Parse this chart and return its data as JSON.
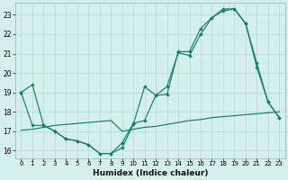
{
  "xlabel": "Humidex (Indice chaleur)",
  "bg_color": "#d5f0ec",
  "grid_color": "#b8ddd8",
  "line_color": "#1a7a6e",
  "xlim": [
    -0.5,
    23.5
  ],
  "ylim": [
    15.6,
    23.6
  ],
  "xticks": [
    0,
    1,
    2,
    3,
    4,
    5,
    6,
    7,
    8,
    9,
    10,
    11,
    12,
    13,
    14,
    15,
    16,
    17,
    18,
    19,
    20,
    21,
    22,
    23
  ],
  "yticks": [
    16,
    17,
    18,
    19,
    20,
    21,
    22,
    23
  ],
  "line1_x": [
    0,
    1,
    2,
    3,
    4,
    5,
    6,
    7,
    8,
    9,
    10,
    11,
    12,
    13,
    14,
    15,
    16,
    17,
    18,
    19,
    20,
    21,
    22,
    23
  ],
  "line1_y": [
    19.0,
    19.4,
    17.3,
    17.0,
    16.6,
    16.5,
    16.3,
    15.85,
    15.85,
    16.15,
    17.35,
    19.3,
    18.85,
    18.9,
    21.1,
    21.1,
    22.3,
    22.85,
    23.3,
    23.3,
    22.55,
    20.5,
    18.5,
    17.7
  ],
  "line2_x": [
    0,
    1,
    2,
    3,
    4,
    5,
    6,
    7,
    8,
    9,
    10,
    11,
    12,
    13,
    14,
    15,
    16,
    17,
    18,
    19,
    20,
    21,
    22,
    23
  ],
  "line2_y": [
    17.05,
    17.1,
    17.2,
    17.3,
    17.35,
    17.4,
    17.45,
    17.5,
    17.55,
    17.0,
    17.1,
    17.2,
    17.25,
    17.35,
    17.45,
    17.55,
    17.6,
    17.7,
    17.75,
    17.8,
    17.85,
    17.9,
    17.95,
    18.0
  ],
  "line3_x": [
    0,
    1,
    2,
    3,
    4,
    5,
    6,
    7,
    8,
    9,
    10,
    11,
    12,
    13,
    14,
    15,
    16,
    17,
    18,
    19,
    20,
    21,
    22,
    23
  ],
  "line3_y": [
    19.0,
    17.3,
    17.3,
    17.0,
    16.6,
    16.5,
    16.3,
    15.85,
    15.85,
    16.4,
    17.4,
    17.55,
    18.85,
    19.3,
    21.05,
    20.9,
    22.0,
    22.85,
    23.2,
    23.3,
    22.55,
    20.3,
    18.5,
    17.7
  ]
}
